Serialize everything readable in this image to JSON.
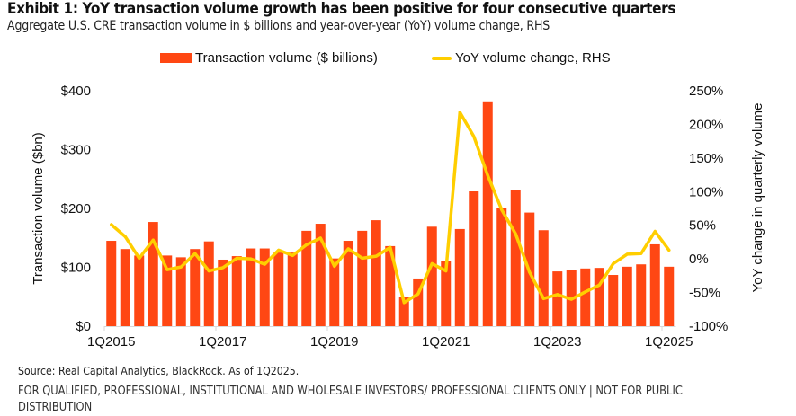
{
  "header": {
    "title": "Exhibit 1: YoY transaction volume growth has been positive for four consecutive quarters",
    "subtitle": "Aggregate U.S. CRE transaction volume in $ billions and year-over-year (YoY) volume change, RHS"
  },
  "footer": {
    "source": "Source: Real Capital Analytics, BlackRock. As of 1Q2025.",
    "disclaimer": "FOR QUALIFIED, PROFESSIONAL, INSTITUTIONAL AND WHOLESALE INVESTORS/ PROFESSIONAL CLIENTS ONLY | NOT FOR PUBLIC DISTRIBUTION"
  },
  "colors": {
    "bar": "#FF4713",
    "line": "#FFCE00",
    "axis": "#D9D9D9"
  },
  "chart_data": {
    "type": "bar",
    "title": "Exhibit 1: YoY transaction volume growth has been positive for four consecutive quarters",
    "subtitle": "Aggregate U.S. CRE transaction volume in $ billions and year-over-year (YoY) volume change, RHS",
    "xlabel": "",
    "ylabel": "Transaction volume ($bn)",
    "y2label": "YoY change in quarterly volume",
    "legend_position": "top-center",
    "grid": false,
    "categories": [
      "1Q2015",
      "2Q2015",
      "3Q2015",
      "4Q2015",
      "1Q2016",
      "2Q2016",
      "3Q2016",
      "4Q2016",
      "1Q2017",
      "2Q2017",
      "3Q2017",
      "4Q2017",
      "1Q2018",
      "2Q2018",
      "3Q2018",
      "4Q2018",
      "1Q2019",
      "2Q2019",
      "3Q2019",
      "4Q2019",
      "1Q2020",
      "2Q2020",
      "3Q2020",
      "4Q2020",
      "1Q2021",
      "2Q2021",
      "3Q2021",
      "4Q2021",
      "1Q2022",
      "2Q2022",
      "3Q2022",
      "4Q2022",
      "1Q2023",
      "2Q2023",
      "3Q2023",
      "4Q2023",
      "1Q2024",
      "2Q2024",
      "3Q2024",
      "4Q2024",
      "1Q2025"
    ],
    "x_tick_labels": [
      "1Q2015",
      "1Q2017",
      "1Q2019",
      "1Q2021",
      "1Q2023",
      "1Q2025"
    ],
    "series": [
      {
        "name": "Transaction volume ($ billions)",
        "type": "bar",
        "axis": "left",
        "values": [
          145,
          131,
          120,
          177,
          120,
          117,
          131,
          144,
          113,
          119,
          132,
          132,
          125,
          125,
          162,
          174,
          115,
          145,
          162,
          180,
          136,
          50,
          81,
          169,
          111,
          165,
          229,
          382,
          200,
          232,
          193,
          163,
          93,
          95,
          98,
          99,
          87,
          101,
          105,
          139,
          101
        ]
      },
      {
        "name": "YoY volume change, RHS",
        "type": "line",
        "axis": "right",
        "values": [
          51,
          33,
          1,
          28,
          -16,
          -12,
          8,
          -18,
          -13,
          1,
          0,
          -8,
          13,
          5,
          21,
          31,
          -11,
          15,
          1,
          4,
          17,
          -65,
          -52,
          -7,
          -18,
          218,
          182,
          124,
          73,
          37,
          -20,
          -59,
          -53,
          -60,
          -49,
          -39,
          -7,
          7,
          8,
          41,
          13
        ]
      }
    ],
    "ylim": [
      0,
      400
    ],
    "y_ticks": [
      0,
      100,
      200,
      300,
      400
    ],
    "y_tick_labels": [
      "$0",
      "$100",
      "$200",
      "$300",
      "$400"
    ],
    "y2lim": [
      -100,
      250
    ],
    "y2_ticks": [
      -100,
      -50,
      0,
      50,
      100,
      150,
      200,
      250
    ],
    "y2_tick_labels": [
      "-100%",
      "-50%",
      "0%",
      "50%",
      "100%",
      "150%",
      "200%",
      "250%"
    ]
  }
}
